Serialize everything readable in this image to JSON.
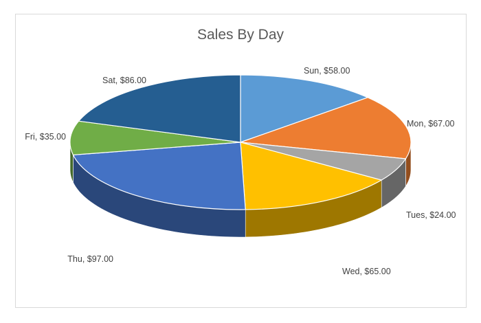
{
  "chart_data": {
    "type": "pie",
    "title": "Sales By Day",
    "categories": [
      "Sun",
      "Mon",
      "Tues",
      "Wed",
      "Thu",
      "Fri",
      "Sat"
    ],
    "values": [
      58,
      67,
      24,
      65,
      97,
      35,
      86
    ],
    "labels": [
      "Sun, $58.00",
      "Mon, $67.00",
      "Tues, $24.00",
      "Wed, $65.00",
      "Thu, $97.00",
      "Fri, $35.00",
      "Sat, $86.00"
    ],
    "colors": [
      "#5b9bd5",
      "#ed7d31",
      "#a5a5a5",
      "#ffc000",
      "#4472c4",
      "#70ad47",
      "#255e91"
    ],
    "style": "3d-pie"
  }
}
